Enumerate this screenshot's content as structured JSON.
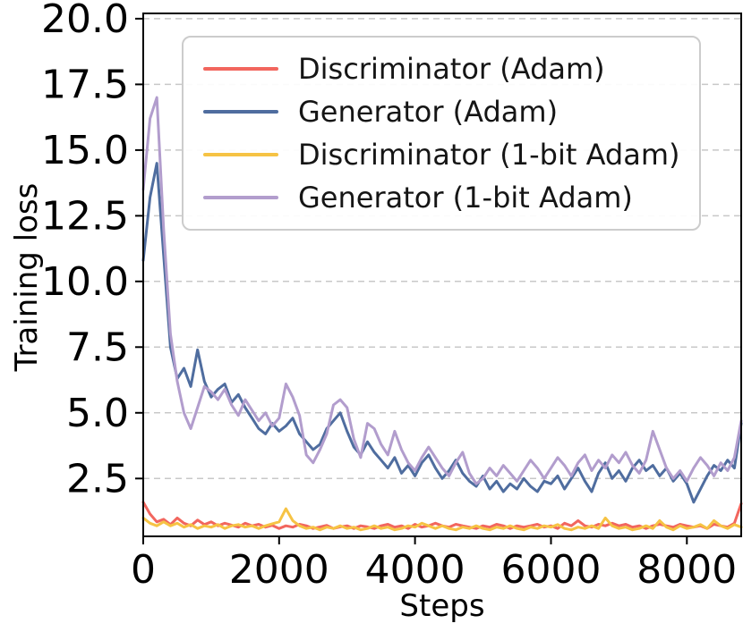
{
  "chart_data": {
    "type": "line",
    "title": "",
    "xlabel": "Steps",
    "ylabel": "Training loss",
    "xlim": [
      0,
      8800
    ],
    "ylim": [
      0.3,
      20.2
    ],
    "x_ticks": [
      0,
      2000,
      4000,
      6000,
      8000
    ],
    "x_tick_labels": [
      "0",
      "2000",
      "4000",
      "6000",
      "8000"
    ],
    "y_ticks": [
      2.5,
      5.0,
      7.5,
      10.0,
      12.5,
      15.0,
      17.5,
      20.0
    ],
    "y_tick_labels": [
      "2.5",
      "5.0",
      "7.5",
      "10.0",
      "12.5",
      "15.0",
      "17.5",
      "20.0"
    ],
    "grid": "horizontal-dashed",
    "grid_color": "#c8c8c8",
    "axis_color": "#000000",
    "legend_position": "upper center-right",
    "x": [
      0,
      100,
      200,
      300,
      400,
      500,
      600,
      700,
      800,
      900,
      1000,
      1100,
      1200,
      1300,
      1400,
      1500,
      1600,
      1700,
      1800,
      1900,
      2000,
      2100,
      2200,
      2300,
      2400,
      2500,
      2600,
      2700,
      2800,
      2900,
      3000,
      3100,
      3200,
      3300,
      3400,
      3500,
      3600,
      3700,
      3800,
      3900,
      4000,
      4100,
      4200,
      4300,
      4400,
      4500,
      4600,
      4700,
      4800,
      4900,
      5000,
      5100,
      5200,
      5300,
      5400,
      5500,
      5600,
      5700,
      5800,
      5900,
      6000,
      6100,
      6200,
      6300,
      6400,
      6500,
      6600,
      6700,
      6800,
      6900,
      7000,
      7100,
      7200,
      7300,
      7400,
      7500,
      7600,
      7700,
      7800,
      7900,
      8000,
      8100,
      8200,
      8300,
      8400,
      8500,
      8600,
      8700,
      8800
    ],
    "series": [
      {
        "name": "Discriminator (Adam)",
        "color": "#f2665e",
        "values": [
          1.6,
          1.15,
          0.85,
          0.95,
          0.75,
          1.0,
          0.8,
          0.7,
          0.92,
          0.75,
          0.85,
          0.7,
          0.8,
          0.73,
          0.65,
          0.8,
          0.7,
          0.76,
          0.65,
          0.72,
          0.6,
          0.7,
          0.65,
          0.76,
          0.7,
          0.6,
          0.66,
          0.72,
          0.6,
          0.66,
          0.7,
          0.6,
          0.7,
          0.66,
          0.6,
          0.7,
          0.76,
          0.65,
          0.7,
          0.6,
          0.76,
          0.65,
          0.7,
          0.8,
          0.7,
          0.65,
          0.76,
          0.7,
          0.65,
          0.6,
          0.7,
          0.65,
          0.76,
          0.7,
          0.6,
          0.7,
          0.65,
          0.7,
          0.76,
          0.65,
          0.7,
          0.6,
          0.8,
          0.7,
          0.9,
          0.7,
          0.65,
          0.76,
          0.7,
          0.8,
          0.7,
          0.76,
          0.65,
          0.7,
          0.6,
          0.7,
          0.76,
          0.7,
          0.65,
          0.76,
          0.7,
          0.65,
          0.7,
          0.6,
          0.76,
          0.7,
          0.65,
          0.8,
          1.55
        ]
      },
      {
        "name": "Generator (Adam)",
        "color": "#4f6d9f",
        "values": [
          10.8,
          13.2,
          14.5,
          11.0,
          7.5,
          6.3,
          6.7,
          6.0,
          7.4,
          6.2,
          5.6,
          5.9,
          6.1,
          5.4,
          5.7,
          5.2,
          4.8,
          4.4,
          4.2,
          4.6,
          4.3,
          4.5,
          4.8,
          4.2,
          3.9,
          3.6,
          3.8,
          4.4,
          4.7,
          5.0,
          4.3,
          3.7,
          3.4,
          3.9,
          3.5,
          3.2,
          2.9,
          3.3,
          2.7,
          3.0,
          2.6,
          3.1,
          3.4,
          2.9,
          2.5,
          2.8,
          3.2,
          2.7,
          2.4,
          2.2,
          2.6,
          2.1,
          2.4,
          2.0,
          2.3,
          2.1,
          2.5,
          2.2,
          2.0,
          2.4,
          2.3,
          2.6,
          2.1,
          2.5,
          2.9,
          2.4,
          2.0,
          2.7,
          3.1,
          2.5,
          2.8,
          2.4,
          2.9,
          3.2,
          2.8,
          3.0,
          2.6,
          2.9,
          2.4,
          2.7,
          2.3,
          1.6,
          2.1,
          2.6,
          3.0,
          2.8,
          3.2,
          2.9,
          4.6
        ]
      },
      {
        "name": "Discriminator (1-bit Adam)",
        "color": "#f6c344",
        "values": [
          1.0,
          0.8,
          0.7,
          0.85,
          0.7,
          0.8,
          0.65,
          0.75,
          0.6,
          0.7,
          0.65,
          0.75,
          0.6,
          0.7,
          0.75,
          0.65,
          0.7,
          0.6,
          0.7,
          0.78,
          0.85,
          1.35,
          0.9,
          0.7,
          0.6,
          0.65,
          0.55,
          0.65,
          0.6,
          0.7,
          0.6,
          0.65,
          0.55,
          0.6,
          0.7,
          0.6,
          0.65,
          0.55,
          0.6,
          0.7,
          0.65,
          0.8,
          0.7,
          0.6,
          0.7,
          0.6,
          0.55,
          0.65,
          0.6,
          0.7,
          0.6,
          0.55,
          0.65,
          0.6,
          0.7,
          0.6,
          0.55,
          0.65,
          0.6,
          0.7,
          0.65,
          0.75,
          0.6,
          0.55,
          0.65,
          0.6,
          0.7,
          0.6,
          1.0,
          0.7,
          0.6,
          0.65,
          0.55,
          0.6,
          0.7,
          0.6,
          0.9,
          0.65,
          0.55,
          0.7,
          0.6,
          0.65,
          0.75,
          0.6,
          0.9,
          0.7,
          0.6,
          0.75,
          0.65
        ]
      },
      {
        "name": "Generator (1-bit Adam)",
        "color": "#b29dcd",
        "values": [
          13.5,
          16.2,
          17.0,
          12.0,
          8.0,
          6.2,
          5.0,
          4.4,
          5.2,
          6.0,
          5.8,
          5.5,
          5.9,
          5.3,
          4.9,
          5.5,
          5.1,
          4.7,
          5.0,
          4.5,
          4.8,
          6.1,
          5.6,
          4.9,
          3.4,
          3.1,
          3.6,
          4.2,
          5.3,
          5.5,
          5.2,
          4.0,
          3.3,
          4.6,
          4.4,
          3.8,
          3.4,
          4.3,
          3.6,
          3.1,
          2.8,
          3.3,
          3.7,
          3.3,
          2.9,
          2.6,
          3.1,
          3.5,
          2.7,
          2.3,
          2.5,
          2.9,
          2.6,
          3.0,
          2.7,
          2.4,
          2.8,
          3.2,
          2.9,
          2.5,
          2.9,
          3.3,
          3.0,
          2.6,
          3.1,
          3.4,
          2.8,
          3.2,
          2.9,
          3.4,
          3.1,
          3.5,
          3.0,
          2.7,
          3.2,
          4.3,
          3.6,
          2.9,
          2.5,
          2.8,
          2.4,
          2.9,
          3.3,
          3.0,
          2.6,
          3.1,
          2.8,
          3.3,
          4.7
        ]
      }
    ]
  }
}
